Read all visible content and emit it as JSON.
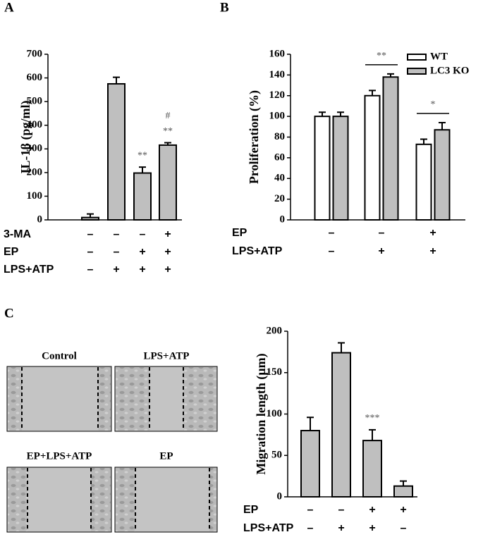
{
  "panel_labels": [
    "A",
    "B",
    "C"
  ],
  "images": [
    {
      "label": "Control"
    },
    {
      "label": "LPS+ATP"
    },
    {
      "label": "EP+LPS+ATP"
    },
    {
      "label": "EP"
    }
  ],
  "chart_data": [
    {
      "type": "bar",
      "y_label": "IL-1β (pg/ml)",
      "color": "#bfbfbf",
      "values": [
        10,
        575,
        198,
        316
      ],
      "errors": [
        15,
        28,
        25,
        10
      ],
      "annotations": [
        [],
        [],
        [
          "**"
        ],
        [
          "#",
          "**"
        ]
      ],
      "ylim": [
        0,
        700
      ],
      "yticks": [
        0,
        100,
        200,
        300,
        400,
        500,
        600,
        700
      ],
      "conditions": [
        {
          "label": "3-MA",
          "values": [
            "–",
            "–",
            "–",
            "+"
          ]
        },
        {
          "label": "EP",
          "values": [
            "–",
            "–",
            "+",
            "+"
          ]
        },
        {
          "label": "LPS+ATP",
          "values": [
            "–",
            "+",
            "+",
            "+"
          ]
        }
      ]
    },
    {
      "type": "bar",
      "y_label": "Proliferation (%)",
      "legend": "upper right",
      "series": [
        {
          "name": "WT",
          "color": "#ffffff",
          "values": [
            100,
            120,
            73
          ],
          "errors": [
            4,
            5,
            5
          ]
        },
        {
          "name": "LC3 KO",
          "color": "#bfbfbf",
          "values": [
            100,
            138,
            87
          ],
          "errors": [
            4,
            3,
            7
          ]
        }
      ],
      "annotations": [
        [],
        [
          "**"
        ],
        [
          "*"
        ]
      ],
      "ylim": [
        0,
        160
      ],
      "yticks": [
        0,
        20,
        40,
        60,
        80,
        100,
        120,
        140,
        160
      ],
      "conditions": [
        {
          "label": "EP",
          "values": [
            "–",
            "–",
            "+"
          ]
        },
        {
          "label": "LPS+ATP",
          "values": [
            "–",
            "+",
            "+"
          ]
        }
      ]
    },
    {
      "type": "bar",
      "y_label": "Migration length (μm)",
      "color": "#bfbfbf",
      "values": [
        80,
        174,
        68,
        13
      ],
      "errors": [
        16,
        12,
        13,
        6
      ],
      "annotations": [
        [],
        [],
        [
          "***"
        ],
        []
      ],
      "ylim": [
        0,
        200
      ],
      "yticks": [
        0,
        50,
        100,
        150,
        200
      ],
      "conditions": [
        {
          "label": "EP",
          "values": [
            "–",
            "–",
            "+",
            "+"
          ]
        },
        {
          "label": "LPS+ATP",
          "values": [
            "–",
            "+",
            "+",
            "–"
          ]
        }
      ]
    }
  ]
}
